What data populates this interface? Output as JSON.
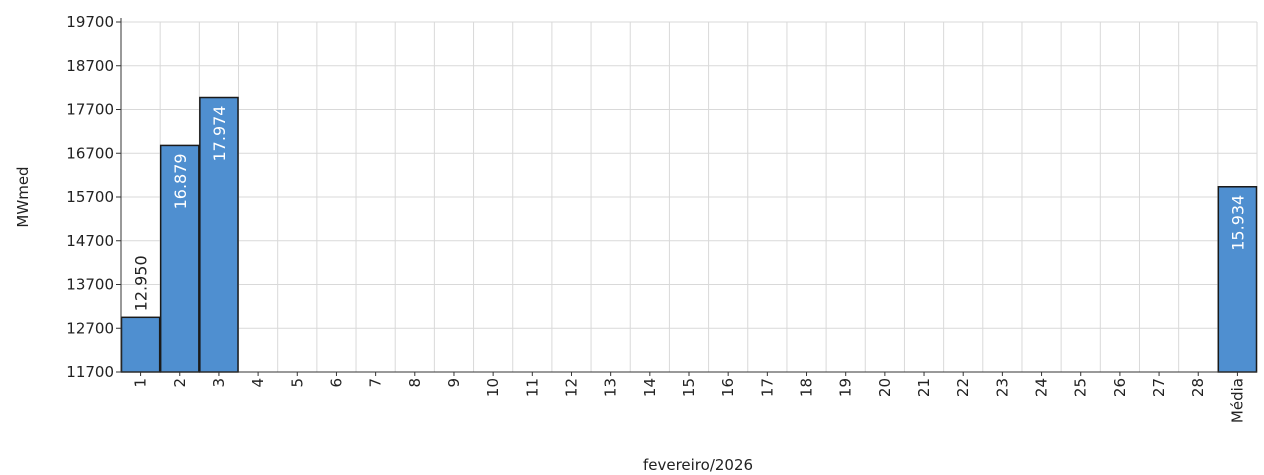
{
  "chart_data": {
    "type": "bar",
    "title": "",
    "xlabel": "fevereiro/2026",
    "ylabel": "MWmed",
    "ylim": [
      11700,
      19700
    ],
    "yticks": [
      11700,
      12700,
      13700,
      14700,
      15700,
      16700,
      17700,
      18700,
      19700
    ],
    "categories": [
      "1",
      "2",
      "3",
      "4",
      "5",
      "6",
      "7",
      "8",
      "9",
      "10",
      "11",
      "12",
      "13",
      "14",
      "15",
      "16",
      "17",
      "18",
      "19",
      "20",
      "21",
      "22",
      "23",
      "24",
      "25",
      "26",
      "27",
      "28",
      "Média"
    ],
    "values": [
      12950,
      16879,
      17974,
      null,
      null,
      null,
      null,
      null,
      null,
      null,
      null,
      null,
      null,
      null,
      null,
      null,
      null,
      null,
      null,
      null,
      null,
      null,
      null,
      null,
      null,
      null,
      null,
      null,
      15934
    ],
    "data_labels": [
      "12.950",
      "16.879",
      "17.974",
      "",
      "",
      "",
      "",
      "",
      "",
      "",
      "",
      "",
      "",
      "",
      "",
      "",
      "",
      "",
      "",
      "",
      "",
      "",
      "",
      "",
      "",
      "",
      "",
      "",
      "15.934"
    ],
    "grid": true,
    "bar_color": "#4f8fd0",
    "bar_border_color": "#1a1a1a"
  }
}
